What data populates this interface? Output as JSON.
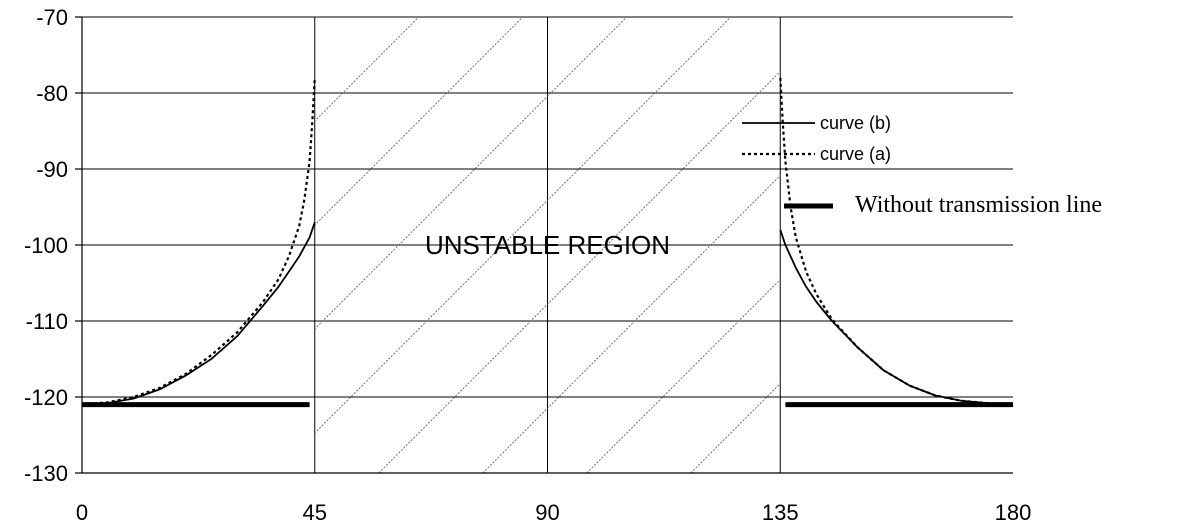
{
  "chart_data": {
    "type": "line",
    "x_ticks": [
      0,
      45,
      90,
      135,
      180
    ],
    "y_ticks": [
      -70,
      -80,
      -90,
      -100,
      -110,
      -120,
      -130
    ],
    "xlim": [
      0,
      180
    ],
    "ylim": [
      -130,
      -70
    ],
    "grid": true,
    "legend_position": "right",
    "region_label": "UNSTABLE REGION",
    "unstable_region": [
      45,
      135
    ],
    "series": [
      {
        "name": "curve (b)",
        "style": "solid",
        "color": "#000000",
        "segments": [
          {
            "x": [
              0,
              5,
              10,
              15,
              20,
              25,
              30,
              35,
              38,
              40,
              42,
              44,
              45
            ],
            "y": [
              -121,
              -120.8,
              -120.2,
              -119,
              -117.2,
              -115,
              -112,
              -108,
              -105.5,
              -103.5,
              -101.5,
              -99,
              -97
            ]
          },
          {
            "x": [
              135,
              136,
              138,
              140,
              142,
              145,
              150,
              155,
              160,
              165,
              170,
              175,
              180
            ],
            "y": [
              -98,
              -100,
              -103,
              -105.5,
              -107.5,
              -110,
              -113.5,
              -116.5,
              -118.5,
              -119.8,
              -120.5,
              -120.8,
              -121
            ]
          }
        ]
      },
      {
        "name": "curve (a)",
        "style": "dotted",
        "color": "#000000",
        "segments": [
          {
            "x": [
              0,
              5,
              10,
              15,
              20,
              25,
              30,
              35,
              38,
              40,
              42,
              43,
              44,
              44.5,
              45
            ],
            "y": [
              -121,
              -120.7,
              -120,
              -118.8,
              -117,
              -114.5,
              -111.5,
              -107.5,
              -104.5,
              -101.5,
              -97.5,
              -94,
              -89,
              -84,
              -78
            ]
          },
          {
            "x": [
              135,
              135.5,
              136,
              137,
              138,
              140,
              142,
              145,
              150,
              155,
              160,
              165,
              170,
              175,
              180
            ],
            "y": [
              -78,
              -84,
              -89,
              -95,
              -99,
              -103.5,
              -106.5,
              -109.8,
              -113.5,
              -116.5,
              -118.5,
              -119.8,
              -120.5,
              -120.8,
              -121
            ]
          }
        ]
      },
      {
        "name": "Without transmission line",
        "style": "thick",
        "color": "#000000",
        "segments": [
          {
            "x": [
              0,
              44
            ],
            "y": [
              -121,
              -121
            ]
          },
          {
            "x": [
              136,
              180
            ],
            "y": [
              -121,
              -121
            ]
          }
        ]
      }
    ]
  }
}
